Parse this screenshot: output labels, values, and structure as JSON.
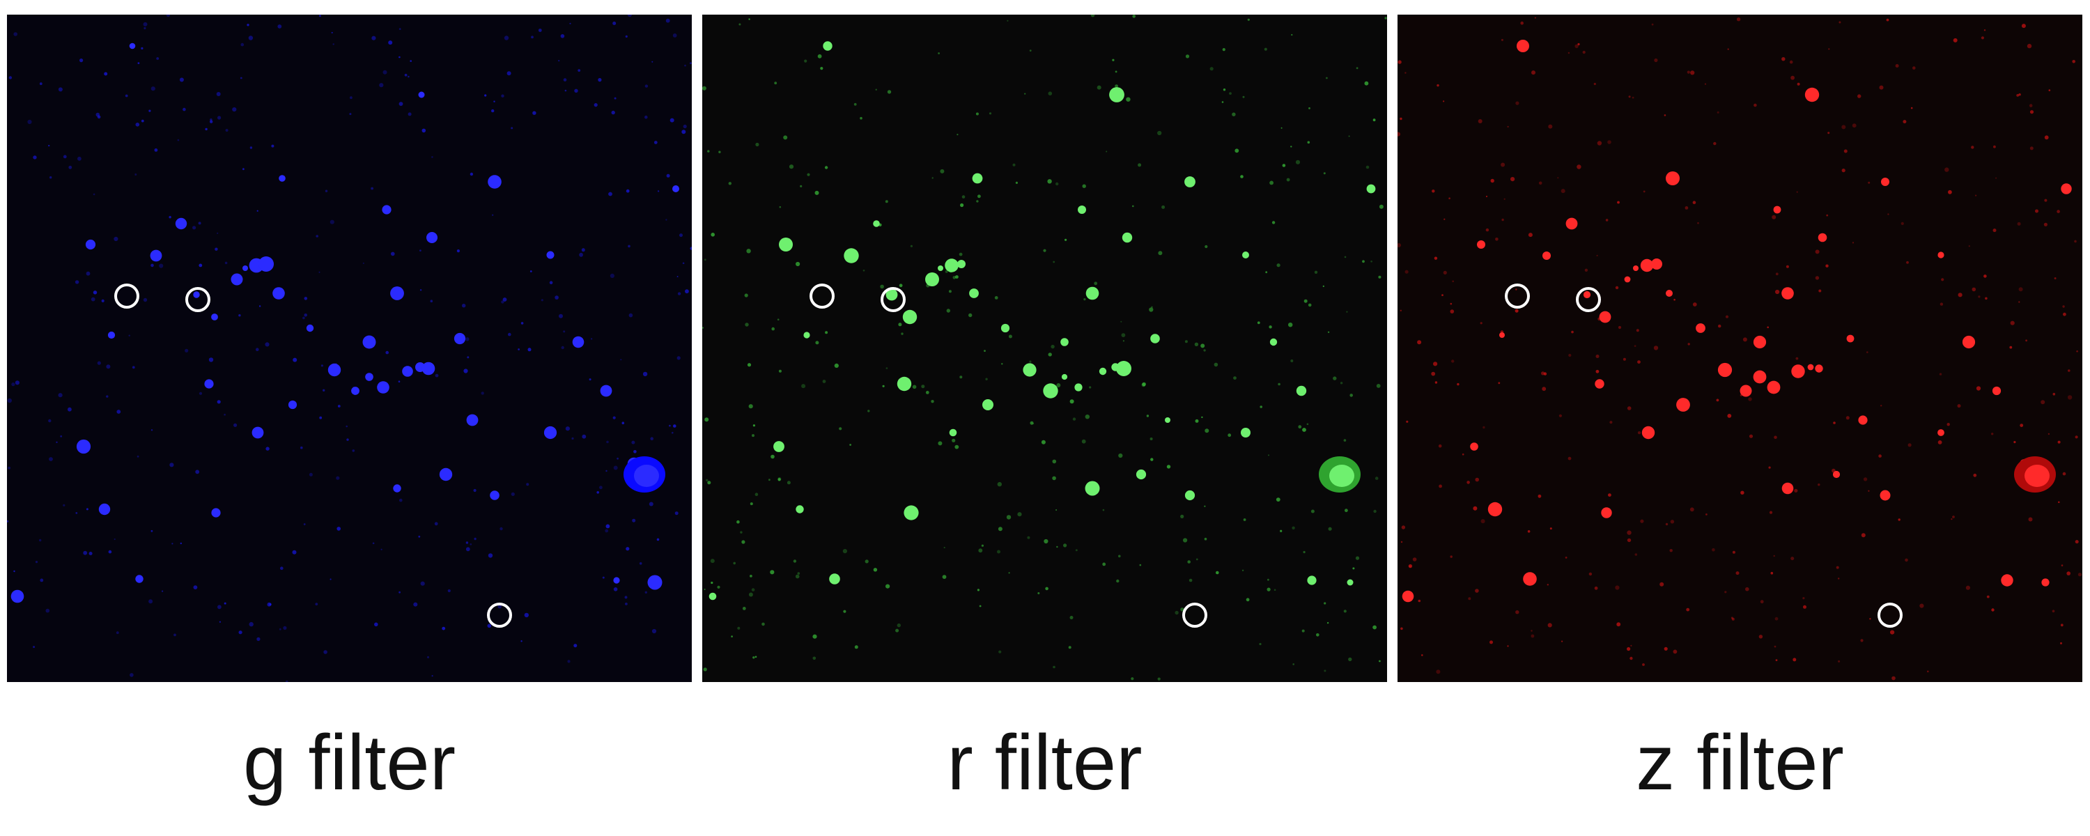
{
  "panels": [
    {
      "id": "g",
      "label": "g filter",
      "background": "#05040f",
      "star_color": "#1a1aff",
      "glow_color": "#0a0aff",
      "bright_color": "#2b2bff"
    },
    {
      "id": "r",
      "label": "r filter",
      "background": "#080808",
      "star_color": "#3fd13f",
      "glow_color": "#2fa32f",
      "bright_color": "#6ff06f"
    },
    {
      "id": "z",
      "label": "z filter",
      "background": "#0d0505",
      "star_color": "#e01414",
      "glow_color": "#b00a0a",
      "bright_color": "#ff2a2a"
    }
  ],
  "marker_color": "#ffffff"
}
